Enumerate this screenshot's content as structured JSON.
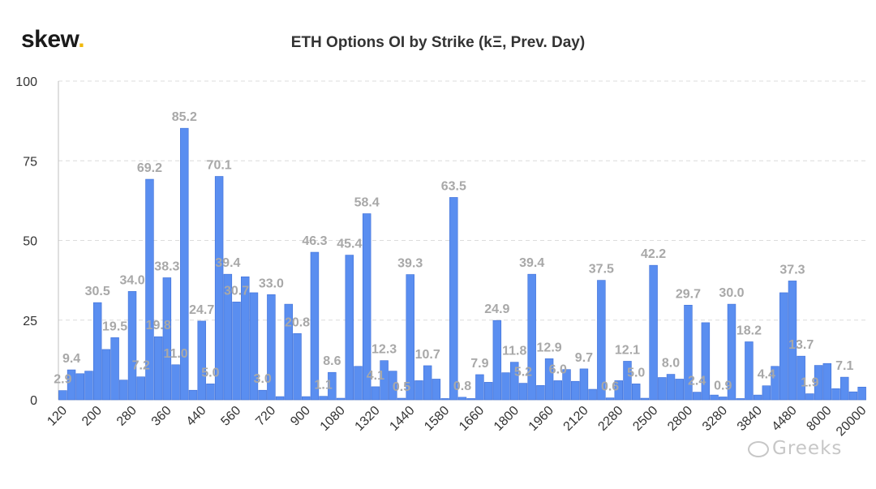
{
  "logo": {
    "text": "skew",
    "dot": "."
  },
  "watermark": {
    "text": "Greeks",
    "icon": "wechat-icon"
  },
  "chart_data": {
    "type": "bar",
    "title": "ETH Options OI by Strike (kΞ, Prev. Day)",
    "xlabel": "",
    "ylabel": "",
    "ylim": [
      0,
      100
    ],
    "yticks": [
      0,
      25,
      50,
      75,
      100
    ],
    "grid": true,
    "bar_color": "#5a8ef0",
    "bar_edge_color": "#3f70d8",
    "label_color": "#a8a8a8",
    "xtick_labels": [
      "120",
      "200",
      "280",
      "360",
      "440",
      "560",
      "720",
      "900",
      "1080",
      "1320",
      "1440",
      "1580",
      "1660",
      "1800",
      "1960",
      "2120",
      "2280",
      "2500",
      "2800",
      "3280",
      "3840",
      "4480",
      "8000",
      "20000"
    ],
    "values": [
      2.9,
      9.4,
      8.2,
      9.0,
      30.5,
      15.8,
      19.5,
      6.2,
      34.0,
      7.2,
      69.2,
      19.8,
      38.3,
      11.0,
      85.2,
      3.0,
      24.7,
      5.0,
      70.1,
      39.4,
      30.7,
      38.6,
      33.6,
      3.0,
      33.0,
      1.0,
      30.0,
      20.8,
      1.0,
      46.3,
      1.1,
      8.6,
      0.5,
      45.4,
      10.5,
      58.4,
      4.1,
      12.3,
      9.0,
      0.5,
      39.3,
      6.0,
      10.7,
      6.5,
      0.4,
      63.5,
      0.8,
      0.4,
      7.9,
      5.5,
      24.9,
      8.5,
      11.8,
      5.2,
      39.4,
      4.5,
      12.9,
      6.0,
      9.5,
      5.8,
      9.7,
      3.3,
      37.5,
      0.6,
      6.0,
      12.1,
      5.0,
      0.5,
      42.2,
      7.0,
      8.0,
      6.5,
      29.7,
      2.4,
      24.2,
      1.5,
      0.9,
      30.0,
      0.4,
      18.2,
      1.5,
      4.4,
      10.5,
      33.6,
      37.3,
      13.7,
      1.9,
      10.8,
      11.4,
      3.5,
      7.1,
      2.5,
      4.0
    ],
    "data_labels": [
      "2.9",
      "9.4",
      null,
      null,
      "30.5",
      null,
      "19.5",
      null,
      "34.0",
      "7.2",
      "69.2",
      "19.8",
      "38.3",
      "11.0",
      "85.2",
      null,
      "24.7",
      "5.0",
      "70.1",
      "39.4",
      "30.7",
      null,
      null,
      "3.0",
      "33.0",
      null,
      null,
      "20.8",
      null,
      "46.3",
      "1.1",
      "8.6",
      null,
      "45.4",
      null,
      "58.4",
      "4.1",
      "12.3",
      null,
      "0.5",
      "39.3",
      null,
      "10.7",
      null,
      null,
      "63.5",
      "0.8",
      null,
      "7.9",
      null,
      "24.9",
      null,
      "11.8",
      "5.2",
      "39.4",
      null,
      "12.9",
      "6.0",
      null,
      null,
      "9.7",
      null,
      "37.5",
      "0.6",
      null,
      "12.1",
      "5.0",
      null,
      "42.2",
      null,
      "8.0",
      null,
      "29.7",
      "2.4",
      null,
      null,
      "0.9",
      "30.0",
      null,
      "18.2",
      null,
      "4.4",
      null,
      null,
      "37.3",
      "13.7",
      "1.9",
      null,
      null,
      null,
      "7.1",
      null,
      null
    ]
  }
}
